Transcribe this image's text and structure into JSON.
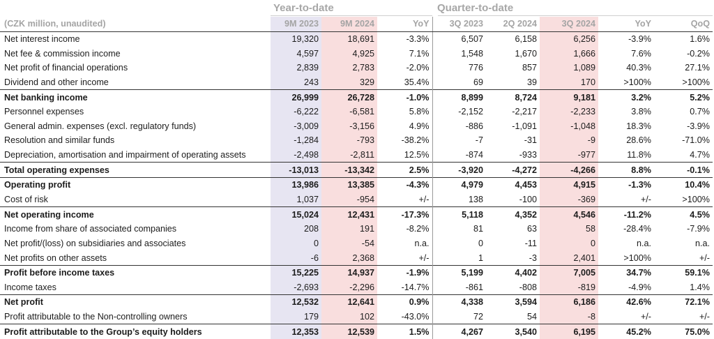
{
  "groups": {
    "ytd": "Year-to-date",
    "qtd": "Quarter-to-date"
  },
  "columns": [
    "(CZK million, unaudited)",
    "9M 2023",
    "9M 2024",
    "YoY",
    "3Q 2023",
    "2Q 2024",
    "3Q 2024",
    "YoY",
    "QoQ"
  ],
  "rows": [
    {
      "label": "Net interest income",
      "bold": false,
      "values": [
        "19,320",
        "18,691",
        "-3.3%",
        "6,507",
        "6,158",
        "6,256",
        "-3.9%",
        "1.6%"
      ]
    },
    {
      "label": "Net fee & commission income",
      "bold": false,
      "values": [
        "4,597",
        "4,925",
        "7.1%",
        "1,548",
        "1,670",
        "1,666",
        "7.6%",
        "-0.2%"
      ]
    },
    {
      "label": "Net profit of financial operations",
      "bold": false,
      "values": [
        "2,839",
        "2,783",
        "-2.0%",
        "776",
        "857",
        "1,089",
        "40.3%",
        "27.1%"
      ]
    },
    {
      "label": "Dividend and other income",
      "bold": false,
      "values": [
        "243",
        "329",
        "35.4%",
        "69",
        "39",
        "170",
        ">100%",
        ">100%"
      ]
    },
    {
      "label": "Net banking income",
      "bold": true,
      "values": [
        "26,999",
        "26,728",
        "-1.0%",
        "8,899",
        "8,724",
        "9,181",
        "3.2%",
        "5.2%"
      ]
    },
    {
      "label": "Personnel expenses",
      "bold": false,
      "values": [
        "-6,222",
        "-6,581",
        "5.8%",
        "-2,152",
        "-2,217",
        "-2,233",
        "3.8%",
        "0.7%"
      ]
    },
    {
      "label": "General admin. expenses (excl. regulatory funds)",
      "bold": false,
      "values": [
        "-3,009",
        "-3,156",
        "4.9%",
        "-886",
        "-1,091",
        "-1,048",
        "18.3%",
        "-3.9%"
      ]
    },
    {
      "label": "Resolution and similar funds",
      "bold": false,
      "values": [
        "-1,284",
        "-793",
        "-38.2%",
        "-7",
        "-31",
        "-9",
        "28.6%",
        "-71.0%"
      ]
    },
    {
      "label": "Depreciation, amortisation and impairment of operating assets",
      "bold": false,
      "values": [
        "-2,498",
        "-2,811",
        "12.5%",
        "-874",
        "-933",
        "-977",
        "11.8%",
        "4.7%"
      ]
    },
    {
      "label": "Total operating expenses",
      "bold": true,
      "values": [
        "-13,013",
        "-13,342",
        "2.5%",
        "-3,920",
        "-4,272",
        "-4,266",
        "8.8%",
        "-0.1%"
      ]
    },
    {
      "label": "Operating profit",
      "bold": true,
      "values": [
        "13,986",
        "13,385",
        "-4.3%",
        "4,979",
        "4,453",
        "4,915",
        "-1.3%",
        "10.4%"
      ]
    },
    {
      "label": "Cost of risk",
      "bold": false,
      "values": [
        "1,037",
        "-954",
        "+/-",
        "138",
        "-100",
        "-369",
        "+/-",
        ">100%"
      ]
    },
    {
      "label": "Net operating income",
      "bold": true,
      "values": [
        "15,024",
        "12,431",
        "-17.3%",
        "5,118",
        "4,352",
        "4,546",
        "-11.2%",
        "4.5%"
      ]
    },
    {
      "label": "Income from share of associated companies",
      "bold": false,
      "values": [
        "208",
        "191",
        "-8.2%",
        "81",
        "63",
        "58",
        "-28.4%",
        "-7.9%"
      ]
    },
    {
      "label": "Net profit/(loss) on subsidiaries and associates",
      "bold": false,
      "values": [
        "0",
        "-54",
        "n.a.",
        "0",
        "-11",
        "0",
        "n.a.",
        "n.a."
      ]
    },
    {
      "label": "Net profits on other assets",
      "bold": false,
      "values": [
        "-6",
        "2,368",
        "+/-",
        "1",
        "-3",
        "2,401",
        ">100%",
        "+/-"
      ]
    },
    {
      "label": "Profit before income taxes",
      "bold": true,
      "values": [
        "15,225",
        "14,937",
        "-1.9%",
        "5,199",
        "4,402",
        "7,005",
        "34.7%",
        "59.1%"
      ]
    },
    {
      "label": "Income taxes",
      "bold": false,
      "values": [
        "-2,693",
        "-2,296",
        "-14.7%",
        "-861",
        "-808",
        "-819",
        "-4.9%",
        "1.4%"
      ]
    },
    {
      "label": "Net profit",
      "bold": true,
      "values": [
        "12,532",
        "12,641",
        "0.9%",
        "4,338",
        "3,594",
        "6,186",
        "42.6%",
        "72.1%"
      ]
    },
    {
      "label": "Profit attributable to the Non-controlling owners",
      "bold": false,
      "values": [
        "179",
        "102",
        "-43.0%",
        "72",
        "54",
        "-8",
        "+/-",
        "+/-"
      ]
    },
    {
      "label": "Profit attributable to the Group’s equity holders",
      "bold": true,
      "values": [
        "12,353",
        "12,539",
        "1.5%",
        "4,267",
        "3,540",
        "6,195",
        "45.2%",
        "75.0%"
      ]
    }
  ]
}
